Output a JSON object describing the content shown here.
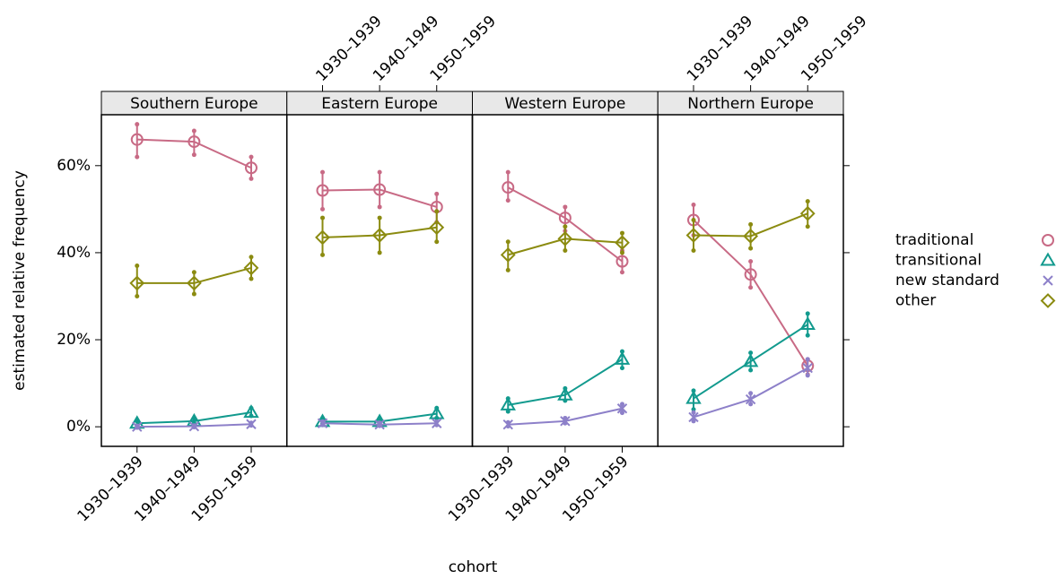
{
  "chart_data": {
    "type": "line",
    "ylabel": "estimated relative frequency",
    "xlabel": "cohort",
    "categories": [
      "1930–1939",
      "1940–1949",
      "1950–1959"
    ],
    "ylim": [
      -4.5,
      71.7
    ],
    "yticks": [
      {
        "value": 0,
        "label": "0%"
      },
      {
        "value": 20,
        "label": "20%"
      },
      {
        "value": 40,
        "label": "40%"
      },
      {
        "value": 60,
        "label": "60%"
      }
    ],
    "series": [
      {
        "name": "traditional",
        "color": "#c86a85",
        "marker": "circle"
      },
      {
        "name": "transitional",
        "color": "#129a8e",
        "marker": "triangle"
      },
      {
        "name": "new standard",
        "color": "#8d80c9",
        "marker": "x"
      },
      {
        "name": "other",
        "color": "#8b8b10",
        "marker": "diamond"
      }
    ],
    "panels": [
      {
        "title": "Southern Europe",
        "series": [
          {
            "values": [
              66,
              65.5,
              59.5
            ],
            "lower": [
              62,
              62.5,
              57
            ],
            "upper": [
              69.5,
              68,
              62
            ]
          },
          {
            "values": [
              0.8,
              1.3,
              3.3
            ],
            "lower": [
              0.3,
              0.8,
              2.5
            ],
            "upper": [
              1.3,
              1.8,
              4.3
            ]
          },
          {
            "values": [
              0,
              0.1,
              0.6
            ],
            "lower": [
              -0.2,
              -0.1,
              0.3
            ],
            "upper": [
              0.2,
              0.3,
              0.9
            ]
          },
          {
            "values": [
              33,
              33,
              36.5
            ],
            "lower": [
              30,
              30.5,
              34
            ],
            "upper": [
              37,
              35.5,
              39
            ]
          }
        ]
      },
      {
        "title": "Eastern Europe",
        "series": [
          {
            "values": [
              54.3,
              54.5,
              50.5
            ],
            "lower": [
              50,
              50.5,
              47
            ],
            "upper": [
              58.5,
              58.5,
              53.5
            ]
          },
          {
            "values": [
              1.2,
              1.2,
              3
            ],
            "lower": [
              0.7,
              0.7,
              2
            ],
            "upper": [
              1.8,
              1.8,
              4.3
            ]
          },
          {
            "values": [
              0.8,
              0.5,
              0.8
            ],
            "lower": [
              0.4,
              0.2,
              0.4
            ],
            "upper": [
              1.2,
              0.9,
              1.2
            ]
          },
          {
            "values": [
              43.5,
              44,
              45.8
            ],
            "lower": [
              39.5,
              40,
              42.5
            ],
            "upper": [
              48,
              48,
              49.5
            ]
          }
        ]
      },
      {
        "title": "Western Europe",
        "series": [
          {
            "values": [
              55,
              48,
              38
            ],
            "lower": [
              52,
              45,
              35.5
            ],
            "upper": [
              58.5,
              50.5,
              40.5
            ]
          },
          {
            "values": [
              5,
              7.3,
              15.5
            ],
            "lower": [
              3.5,
              6,
              13.5
            ],
            "upper": [
              6.5,
              8.8,
              17.3
            ]
          },
          {
            "values": [
              0.5,
              1.3,
              4.2
            ],
            "lower": [
              0.1,
              0.8,
              3.2
            ],
            "upper": [
              1,
              2,
              5.2
            ]
          },
          {
            "values": [
              39.5,
              43.2,
              42.3
            ],
            "lower": [
              36,
              40.5,
              40
            ],
            "upper": [
              42.5,
              46,
              44.5
            ]
          }
        ]
      },
      {
        "title": "Northern Europe",
        "series": [
          {
            "values": [
              47.5,
              35,
              14
            ],
            "lower": [
              44,
              32,
              12
            ],
            "upper": [
              51,
              38,
              15.5
            ]
          },
          {
            "values": [
              6.5,
              15,
              23.5
            ],
            "lower": [
              4,
              13,
              21
            ],
            "upper": [
              8.3,
              17,
              26
            ]
          },
          {
            "values": [
              2.2,
              6.3,
              13.5
            ],
            "lower": [
              1.3,
              5.2,
              11.8
            ],
            "upper": [
              3.3,
              7.7,
              15.5
            ]
          },
          {
            "values": [
              44,
              43.8,
              49
            ],
            "lower": [
              40.5,
              41,
              46
            ],
            "upper": [
              47.5,
              46.5,
              51.8
            ]
          }
        ]
      }
    ]
  }
}
